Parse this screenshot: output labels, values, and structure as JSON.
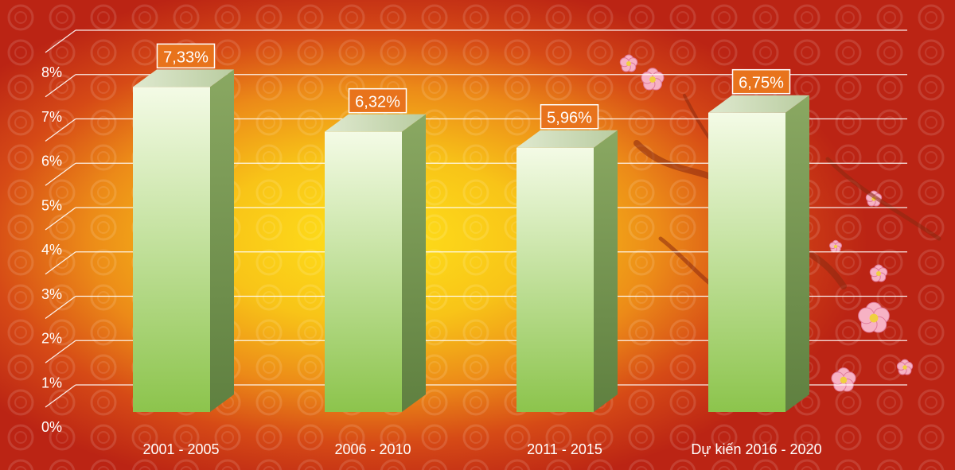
{
  "chart_data": {
    "type": "bar",
    "categories": [
      "2001 - 2005",
      "2006 - 2010",
      "2011 - 2015",
      "Dự kiến 2016 - 2020"
    ],
    "values": [
      7.33,
      6.32,
      5.96,
      6.75
    ],
    "value_labels": [
      "7,33%",
      "6,32%",
      "5,96%",
      "6,75%"
    ],
    "y_ticks": [
      "0%",
      "1%",
      "2%",
      "3%",
      "4%",
      "5%",
      "6%",
      "7%",
      "8%"
    ],
    "ylim": [
      0,
      8
    ],
    "grid": true,
    "style": "3d-box",
    "colors": {
      "bar_front_top": "#f4fbe6",
      "bar_front_bottom": "#8cc44c",
      "bar_side": "#6e8f4c",
      "label_bg": "#e8731c",
      "label_text": "#ffffff",
      "axis_text": "#ffffff",
      "background_center": "#ffe21a",
      "background_edge": "#bb2414"
    }
  }
}
